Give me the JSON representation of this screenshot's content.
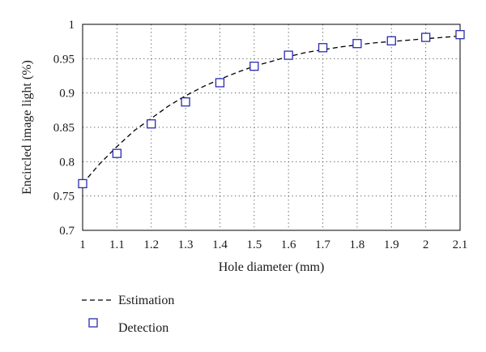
{
  "chart_data": {
    "type": "line",
    "title": "",
    "xlabel": "Hole diameter (mm)",
    "ylabel": "Encircled image light (%)",
    "xlim": [
      1,
      2.1
    ],
    "ylim": [
      0.7,
      1
    ],
    "x_ticks": [
      "1",
      "1.1",
      "1.2",
      "1.3",
      "1.4",
      "1.5",
      "1.6",
      "1.7",
      "1.8",
      "1.9",
      "2",
      "2.1"
    ],
    "y_ticks": [
      "0.7",
      "0.75",
      "0.8",
      "0.85",
      "0.9",
      "0.95",
      "1"
    ],
    "grid": "dotted",
    "legend_position": "bottom-left",
    "series": [
      {
        "name": "Estimation",
        "style": "dashed-line",
        "color": "#000000",
        "x": [
          1.0,
          1.05,
          1.1,
          1.15,
          1.2,
          1.25,
          1.3,
          1.35,
          1.4,
          1.45,
          1.5,
          1.55,
          1.6,
          1.65,
          1.7,
          1.75,
          1.8,
          1.85,
          1.9,
          1.95,
          2.0,
          2.05,
          2.1
        ],
        "y": [
          0.768,
          0.797,
          0.822,
          0.845,
          0.863,
          0.881,
          0.896,
          0.909,
          0.92,
          0.93,
          0.939,
          0.946,
          0.953,
          0.959,
          0.963,
          0.967,
          0.97,
          0.973,
          0.975,
          0.977,
          0.979,
          0.981,
          0.983
        ]
      },
      {
        "name": "Detection",
        "style": "hollow-square-markers",
        "color": "#2b2bb0",
        "x": [
          1.0,
          1.1,
          1.2,
          1.3,
          1.4,
          1.5,
          1.6,
          1.7,
          1.8,
          1.9,
          2.0,
          2.1
        ],
        "y": [
          0.768,
          0.812,
          0.855,
          0.887,
          0.915,
          0.939,
          0.955,
          0.966,
          0.972,
          0.976,
          0.981,
          0.985
        ]
      }
    ]
  }
}
